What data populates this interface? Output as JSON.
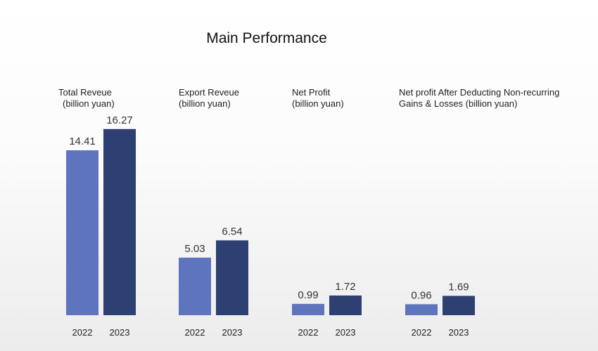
{
  "page": {
    "title": "Main Performance"
  },
  "colors": {
    "y2022": "#5e74bd",
    "y2023": "#2e3f71"
  },
  "chart_data": {
    "type": "bar",
    "title": "Main Performance",
    "groups": [
      {
        "title_lines": [
          "Total Reveue",
          "(billion yuan)"
        ],
        "categories": [
          "2022",
          "2023"
        ],
        "values": [
          14.41,
          16.27
        ],
        "value_labels": [
          "14.41",
          "16.27"
        ]
      },
      {
        "title_lines": [
          "Export Reveue",
          "(billion yuan)"
        ],
        "categories": [
          "2022",
          "2023"
        ],
        "values": [
          5.03,
          6.54
        ],
        "value_labels": [
          "5.03",
          "6.54"
        ]
      },
      {
        "title_lines": [
          "Net Profit",
          "(billion yuan)"
        ],
        "categories": [
          "2022",
          "2023"
        ],
        "values": [
          0.99,
          1.72
        ],
        "value_labels": [
          "0.99",
          "1.72"
        ]
      },
      {
        "title_lines": [
          "Net profit After Deducting Non-recurring",
          "Gains & Losses (billion yuan)"
        ],
        "categories": [
          "2022",
          "2023"
        ],
        "values": [
          0.96,
          1.69
        ],
        "value_labels": [
          "0.96",
          "1.69"
        ]
      }
    ]
  }
}
